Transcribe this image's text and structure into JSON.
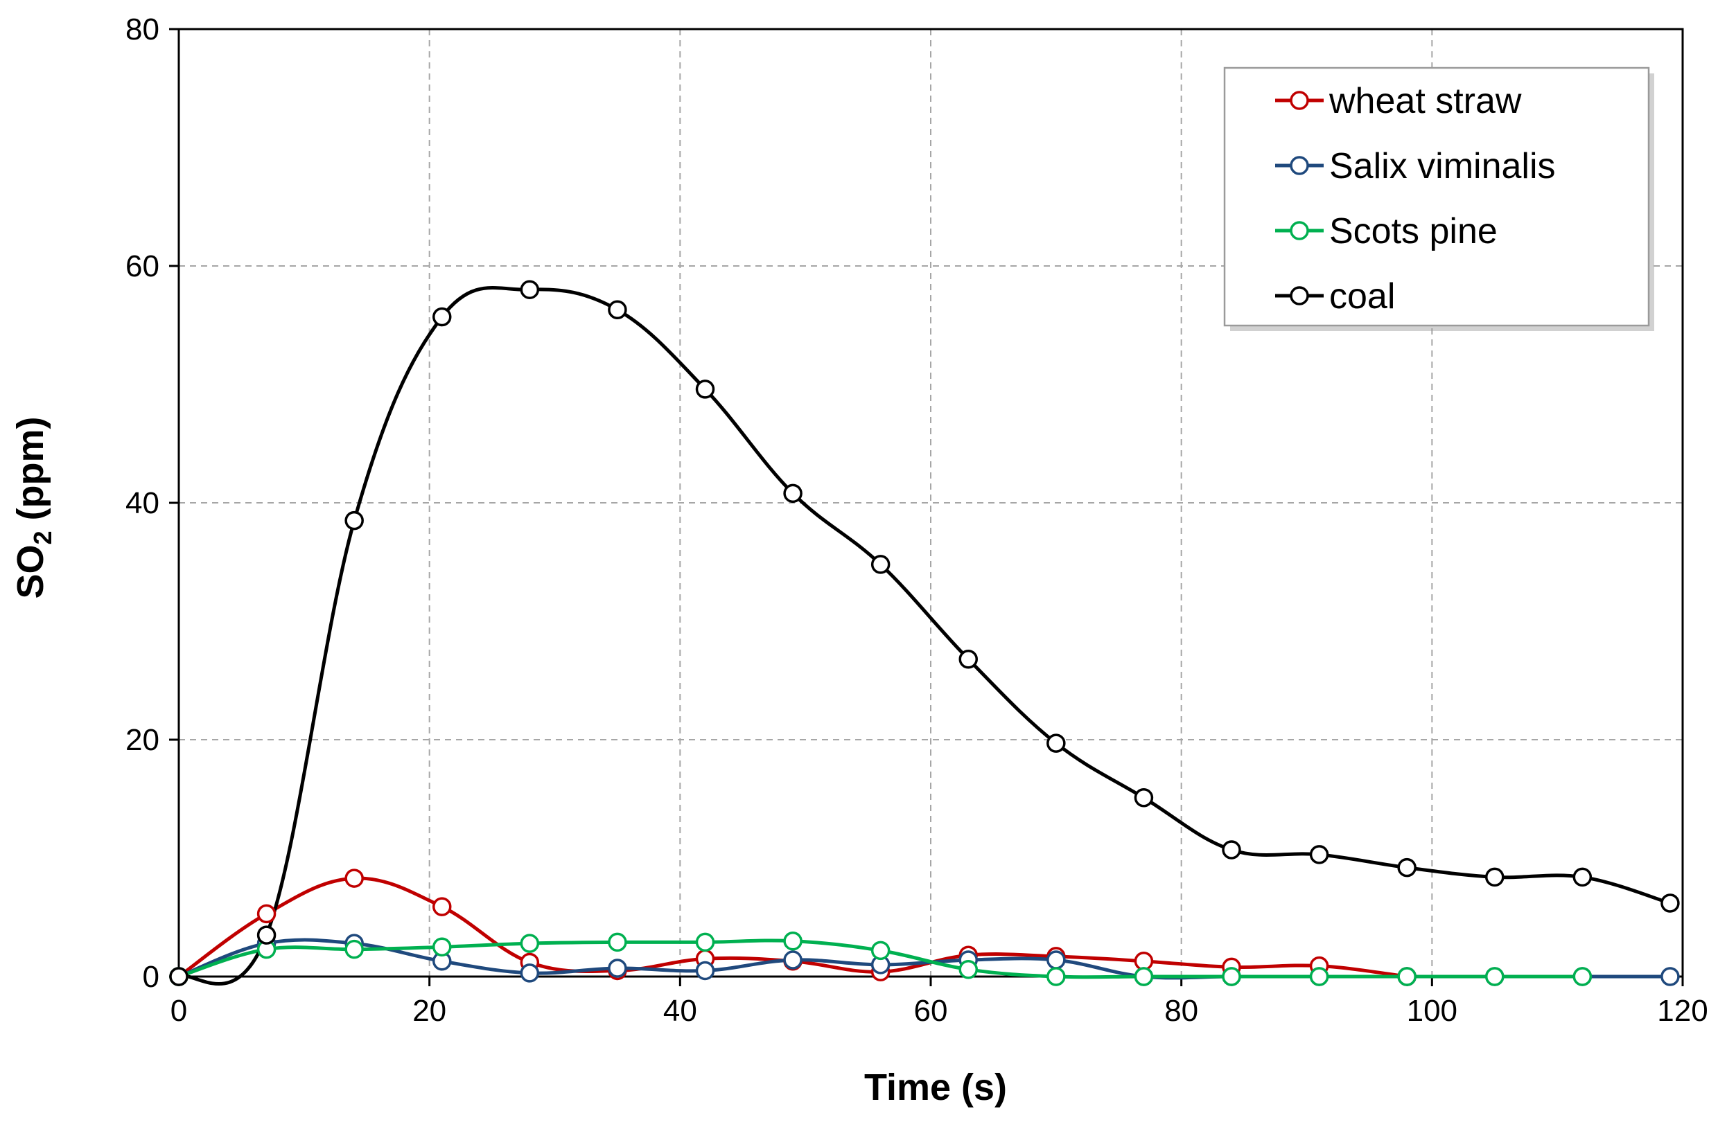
{
  "chart_data": {
    "type": "line",
    "title": "",
    "xlabel": "Time (s)",
    "ylabel_main": "SO",
    "ylabel_sub": "2",
    "ylabel_unit": " (ppm)",
    "xlim": [
      0,
      120
    ],
    "ylim": [
      0,
      80
    ],
    "xticks": [
      0,
      20,
      40,
      60,
      80,
      100,
      120
    ],
    "yticks": [
      0,
      20,
      40,
      60,
      80
    ],
    "xtick_labels": [
      "0",
      "20",
      "40",
      "60",
      "80",
      "100",
      "120"
    ],
    "ytick_labels": [
      "0",
      "20",
      "40",
      "60",
      "80"
    ],
    "grid": true,
    "legend_position": "top-right",
    "series": [
      {
        "name": "wheat straw",
        "color": "#c00000",
        "x": [
          0,
          7,
          14,
          21,
          28,
          35,
          42,
          49,
          56,
          63,
          70,
          77,
          84,
          91,
          98
        ],
        "values": [
          0,
          5.3,
          8.3,
          5.9,
          1.2,
          0.5,
          1.5,
          1.3,
          0.4,
          1.8,
          1.7,
          1.3,
          0.8,
          0.9,
          0
        ]
      },
      {
        "name": "Salix viminalis",
        "color": "#1f497d",
        "x": [
          0,
          7,
          14,
          21,
          28,
          35,
          42,
          49,
          56,
          63,
          70,
          77,
          84,
          91,
          98,
          105,
          112,
          119
        ],
        "values": [
          0,
          2.8,
          2.8,
          1.3,
          0.3,
          0.7,
          0.5,
          1.4,
          1.0,
          1.4,
          1.4,
          0,
          0,
          0,
          0,
          0,
          0,
          0
        ]
      },
      {
        "name": "Scots pine",
        "color": "#00b050",
        "x": [
          0,
          7,
          14,
          21,
          28,
          35,
          42,
          49,
          56,
          63,
          70,
          77,
          84,
          91,
          98,
          105,
          112
        ],
        "values": [
          0,
          2.3,
          2.3,
          2.5,
          2.8,
          2.9,
          2.9,
          3.0,
          2.2,
          0.6,
          0,
          0,
          0,
          0,
          0,
          0,
          0
        ]
      },
      {
        "name": "coal",
        "color": "#000000",
        "x": [
          0,
          7,
          14,
          21,
          28,
          35,
          42,
          49,
          56,
          63,
          70,
          77,
          84,
          91,
          98,
          105,
          112,
          119
        ],
        "values": [
          0,
          3.5,
          38.5,
          55.7,
          58.0,
          56.3,
          49.6,
          40.8,
          34.8,
          26.8,
          19.7,
          15.1,
          10.7,
          10.3,
          9.2,
          8.4,
          8.4,
          6.2
        ]
      }
    ]
  }
}
